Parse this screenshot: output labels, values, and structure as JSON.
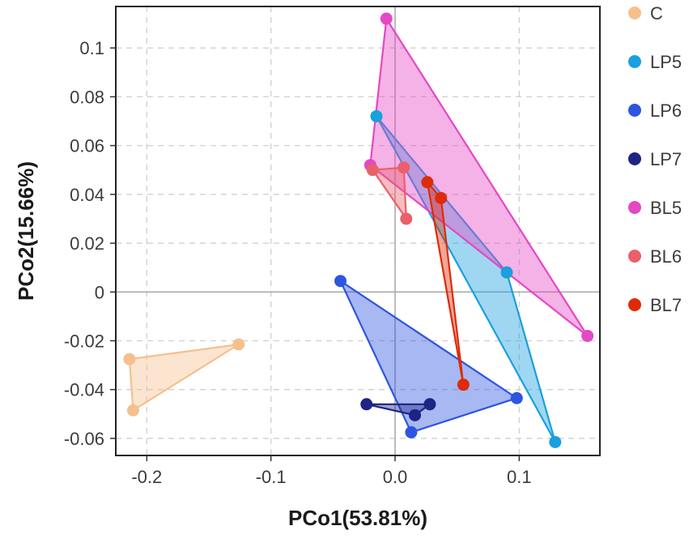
{
  "chart_data": {
    "type": "scatter",
    "title": "",
    "xlabel": "PCo1(53.81%)",
    "ylabel": "PCo2(15.66%)",
    "xlim": [
      -0.225,
      0.165
    ],
    "ylim": [
      -0.067,
      0.117
    ],
    "x_ticks": [
      -0.2,
      -0.1,
      0.0,
      0.1
    ],
    "x_tick_labels": [
      "-0.2",
      "-0.1",
      "0.0",
      "0.1"
    ],
    "y_ticks": [
      -0.06,
      -0.04,
      -0.02,
      0,
      0.02,
      0.04,
      0.06,
      0.08,
      0.1
    ],
    "y_tick_labels": [
      "-0.06",
      "-0.04",
      "-0.02",
      "0",
      "0.02",
      "0.04",
      "0.06",
      "0.08",
      "0.1"
    ],
    "grid": true,
    "reference_lines": {
      "x": 0,
      "y": 0
    },
    "legend_position": "right",
    "series": [
      {
        "name": "C",
        "color": "#F5C08E",
        "points": [
          [
            -0.214,
            -0.0275
          ],
          [
            -0.126,
            -0.0215
          ],
          [
            -0.211,
            -0.0485
          ]
        ]
      },
      {
        "name": "LP5",
        "color": "#1A9FDF",
        "points": [
          [
            -0.015,
            0.072
          ],
          [
            0.09,
            0.008
          ],
          [
            0.129,
            -0.0615
          ]
        ]
      },
      {
        "name": "LP6",
        "color": "#2E55E0",
        "points": [
          [
            -0.044,
            0.0045
          ],
          [
            0.098,
            -0.0435
          ],
          [
            0.013,
            -0.0575
          ]
        ]
      },
      {
        "name": "LP7",
        "color": "#1D2484",
        "points": [
          [
            -0.023,
            -0.046
          ],
          [
            0.028,
            -0.046
          ],
          [
            0.016,
            -0.0505
          ]
        ]
      },
      {
        "name": "BL5",
        "color": "#E548C4",
        "points": [
          [
            -0.007,
            0.112
          ],
          [
            0.155,
            -0.018
          ],
          [
            -0.02,
            0.052
          ]
        ]
      },
      {
        "name": "BL6",
        "color": "#E9606A",
        "points": [
          [
            -0.018,
            0.05
          ],
          [
            0.007,
            0.051
          ],
          [
            0.009,
            0.03
          ]
        ]
      },
      {
        "name": "BL7",
        "color": "#DD2B08",
        "points": [
          [
            0.026,
            0.045
          ],
          [
            0.037,
            0.0385
          ],
          [
            0.055,
            -0.038
          ]
        ]
      }
    ]
  }
}
